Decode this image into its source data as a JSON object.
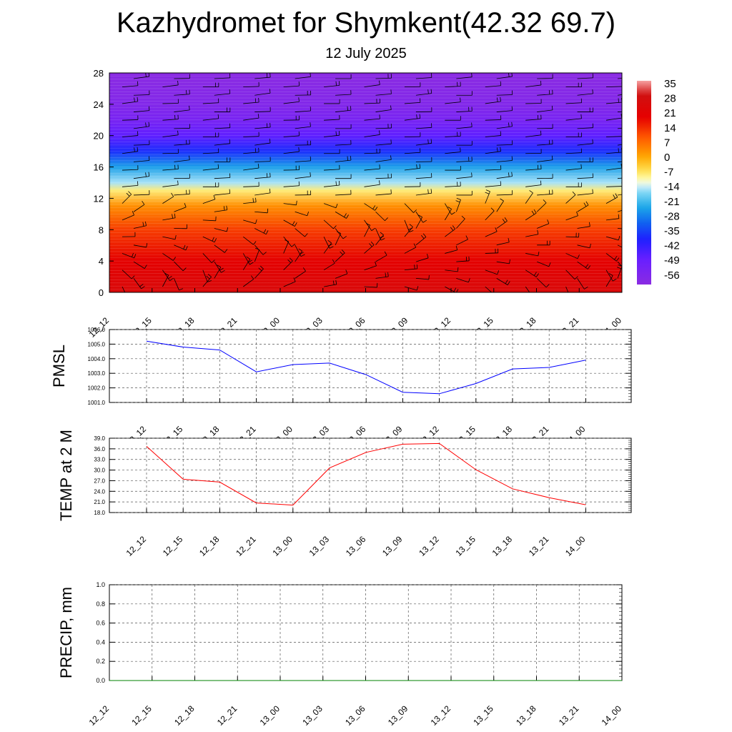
{
  "title": "Kazhydromet for Shymkent(42.32 69.7)",
  "subtitle": "12 July 2025",
  "chart_data": [
    {
      "type": "heatmap",
      "name": "cross-section",
      "x_ticks": [
        "12_12",
        "12_15",
        "12_18",
        "12_21",
        "13_00",
        "13_03",
        "13_06",
        "13_09",
        "13_12",
        "13_15",
        "13_18",
        "13_21",
        "14_00"
      ],
      "y_ticks": [
        0,
        4,
        8,
        12,
        16,
        20,
        24,
        28
      ],
      "ylim": [
        0,
        28
      ],
      "colorbar_labels": [
        "35",
        "28",
        "21",
        "14",
        "7",
        "0",
        "-7",
        "-14",
        "-21",
        "-28",
        "-35",
        "-42",
        "-49",
        "-56"
      ],
      "colorbar_range": [
        -63,
        42
      ],
      "temperature_profile": [
        {
          "level": 0,
          "value": 30
        },
        {
          "level": 4,
          "value": 24
        },
        {
          "level": 8,
          "value": 16
        },
        {
          "level": 11,
          "value": 6
        },
        {
          "level": 13,
          "value": -6
        },
        {
          "level": 14,
          "value": -14
        },
        {
          "level": 16,
          "value": -24
        },
        {
          "level": 18,
          "value": -38
        },
        {
          "level": 20,
          "value": -49
        },
        {
          "level": 22,
          "value": -56
        },
        {
          "level": 24,
          "value": -60
        },
        {
          "level": 28,
          "value": -63
        }
      ],
      "wind_barbs": true,
      "colors": {
        "warm": "#c80000",
        "cold": "#8a2be2"
      }
    },
    {
      "type": "line",
      "ylabel": "PMSL",
      "x_ticks": [
        "12_12",
        "12_15",
        "12_18",
        "12_21",
        "13_00",
        "13_03",
        "13_06",
        "13_09",
        "13_12",
        "13_15",
        "13_18",
        "13_21",
        "14_00"
      ],
      "y_ticks": [
        "1001.0",
        "1002.0",
        "1003.0",
        "1004.0",
        "1005.0",
        "1006.0"
      ],
      "ylim": [
        1001.0,
        1006.0
      ],
      "values": [
        1005.2,
        1004.8,
        1004.6,
        1003.1,
        1003.6,
        1003.7,
        1002.9,
        1001.7,
        1001.6,
        1002.3,
        1003.3,
        1003.4,
        1003.9
      ],
      "color": "#0000ff"
    },
    {
      "type": "line",
      "ylabel": "TEMP at 2 M",
      "x_ticks": [
        "12_12",
        "12_15",
        "12_18",
        "12_21",
        "13_00",
        "13_03",
        "13_06",
        "13_09",
        "13_12",
        "13_15",
        "13_18",
        "13_21",
        "14_00"
      ],
      "y_ticks": [
        "18.0",
        "21.0",
        "24.0",
        "27.0",
        "30.0",
        "33.0",
        "36.0",
        "39.0"
      ],
      "ylim": [
        18.0,
        39.0
      ],
      "values": [
        36.7,
        27.4,
        26.6,
        20.7,
        20.1,
        30.6,
        35.0,
        37.3,
        37.5,
        30.1,
        24.7,
        22.2,
        20.2
      ],
      "color": "#ff0000"
    },
    {
      "type": "line",
      "ylabel": "PRECIP, mm",
      "x_ticks": [
        "12_12",
        "12_15",
        "12_18",
        "12_21",
        "13_00",
        "13_03",
        "13_06",
        "13_09",
        "13_12",
        "13_15",
        "13_18",
        "13_21",
        "14_00"
      ],
      "y_ticks": [
        "0.0",
        "0.2",
        "0.4",
        "0.6",
        "0.8",
        "1.0"
      ],
      "ylim": [
        0.0,
        1.0
      ],
      "values": [
        0,
        0,
        0,
        0,
        0,
        0,
        0,
        0,
        0,
        0,
        0,
        0,
        0
      ],
      "color": "#008000"
    }
  ]
}
